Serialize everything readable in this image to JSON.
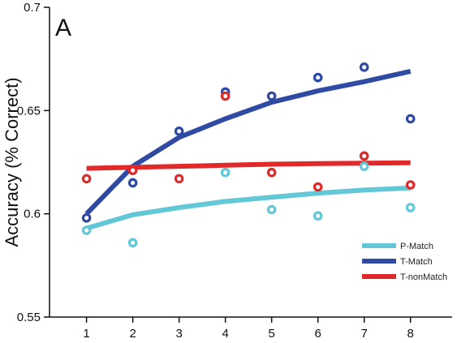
{
  "chart_data": {
    "type": "line",
    "panel_label": "A",
    "title": "",
    "xlabel": "",
    "ylabel": "Accuracy (% Correct)",
    "xlim": [
      0.2,
      8.9
    ],
    "ylim": [
      0.55,
      0.7
    ],
    "x_ticks": [
      1,
      2,
      3,
      4,
      5,
      6,
      7,
      8
    ],
    "y_ticks": [
      0.55,
      0.6,
      0.65,
      0.7
    ],
    "y_tick_labels": [
      "0.55",
      "0.6",
      "0.65",
      "0.7"
    ],
    "grid": false,
    "legend_position": "bottom-right",
    "x": [
      1,
      2,
      3,
      4,
      5,
      6,
      7,
      8
    ],
    "series": [
      {
        "name": "P-Match",
        "color": "#62c8d8",
        "points": [
          0.592,
          0.586,
          null,
          0.62,
          0.602,
          0.599,
          0.623,
          0.603
        ],
        "fit": [
          0.593,
          0.5995,
          0.603,
          0.606,
          0.608,
          0.61,
          0.6115,
          0.6125
        ]
      },
      {
        "name": "T-Match",
        "color": "#2e4aa3",
        "points": [
          0.598,
          0.615,
          0.64,
          0.659,
          0.657,
          0.666,
          0.671,
          0.646
        ],
        "fit": [
          0.6,
          0.623,
          0.637,
          0.646,
          0.654,
          0.6595,
          0.664,
          0.669
        ]
      },
      {
        "name": "T-nonMatch",
        "color": "#e02a2a",
        "points": [
          0.617,
          0.621,
          0.617,
          0.657,
          0.62,
          0.613,
          0.628,
          0.614
        ],
        "fit": [
          0.622,
          0.6225,
          0.623,
          0.6235,
          0.624,
          0.6243,
          0.6245,
          0.6247
        ]
      }
    ]
  }
}
